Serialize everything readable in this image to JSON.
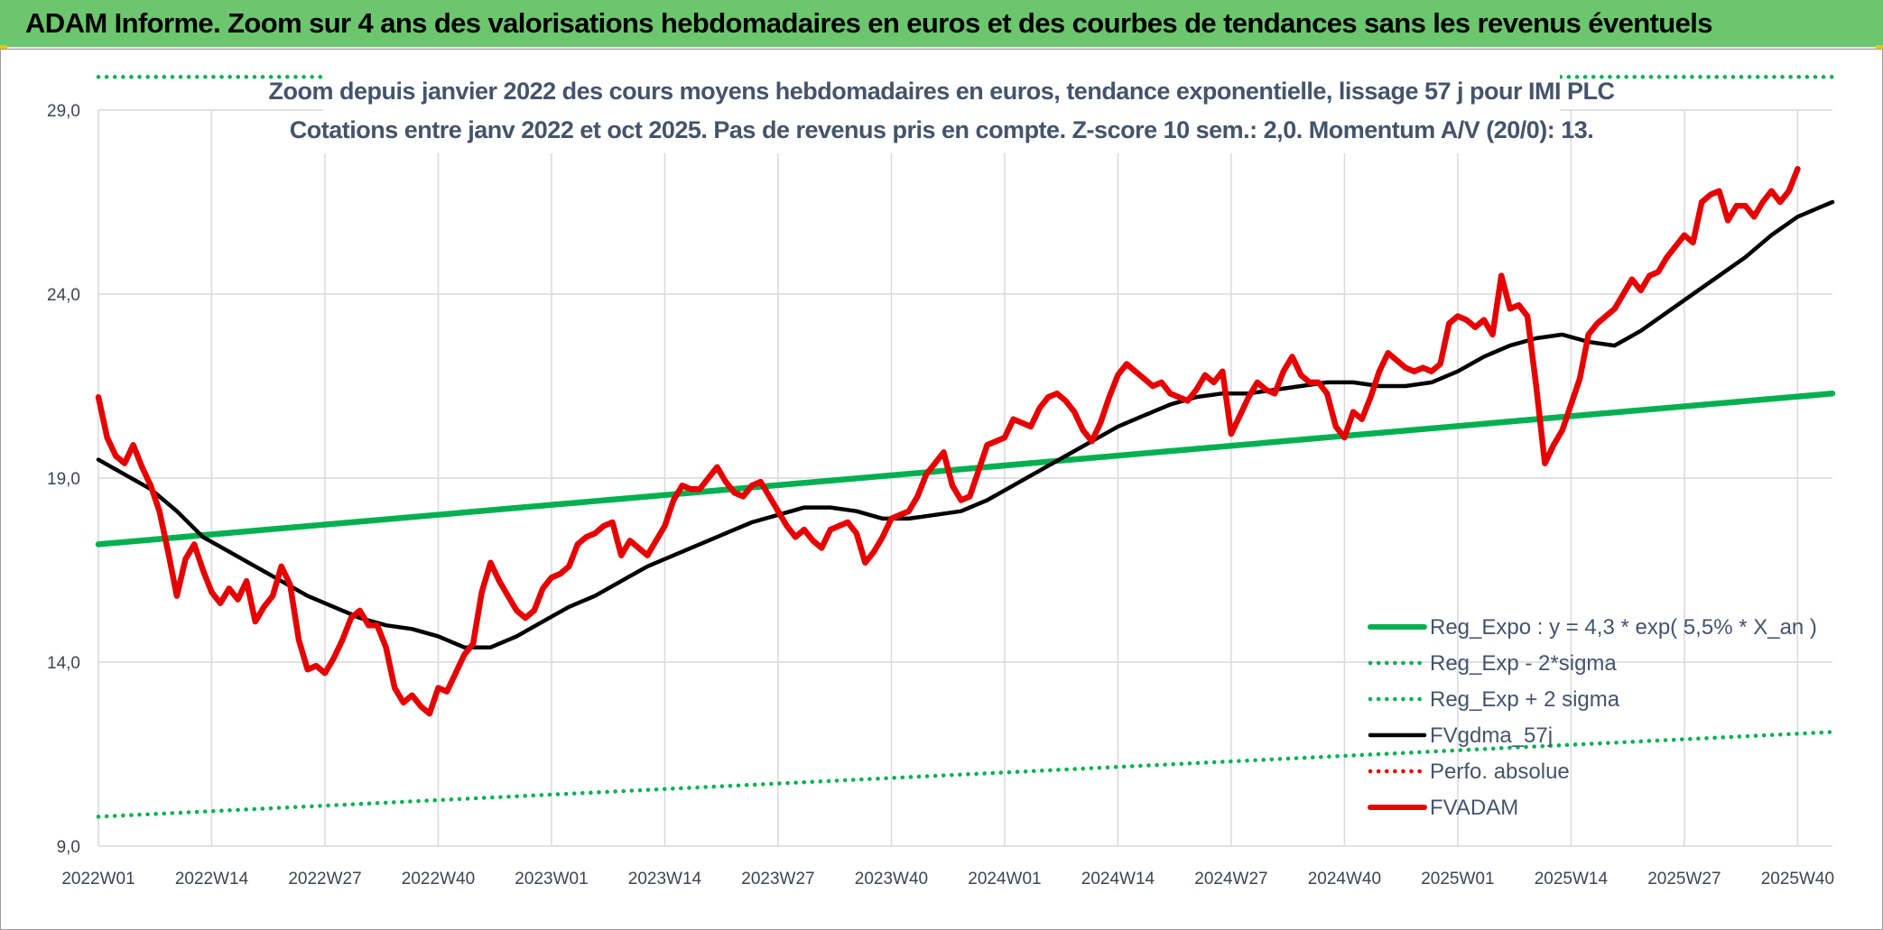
{
  "banner": {
    "title": "ADAM Informe. Zoom sur 4 ans des valorisations hebdomadaires en euros et des courbes de tendances sans les revenus éventuels"
  },
  "colors": {
    "banner_bg": "#6cc66e",
    "reg_expo": "#00b050",
    "fvgdma": "#000000",
    "fvadam": "#e60000",
    "perfo": "#e60000",
    "grid": "#d9d9d9"
  },
  "chart_data": {
    "type": "line",
    "title_lines": [
      "Zoom depuis janvier 2022 des cours moyens hebdomadaires en euros, tendance exponentielle, lissage 57 j pour IMI PLC",
      "Cotations entre janv 2022 et oct 2025. Pas de revenus pris en compte. Z-score 10 sem.: 2,0. Momentum A/V (20/0): 13."
    ],
    "ylim": [
      9,
      29
    ],
    "y_ticks": [
      "9,0",
      "14,0",
      "19,0",
      "24,0",
      "29,0"
    ],
    "y_tick_values": [
      9,
      14,
      19,
      24,
      29
    ],
    "x_ticks": [
      "2022W01",
      "2022W14",
      "2022W27",
      "2022W40",
      "2023W01",
      "2023W14",
      "2023W27",
      "2023W40",
      "2024W01",
      "2024W14",
      "2024W27",
      "2024W40",
      "2025W01",
      "2025W14",
      "2025W27",
      "2025W40"
    ],
    "x_tick_weeks": [
      0,
      13,
      26,
      39,
      52,
      65,
      78,
      91,
      104,
      117,
      130,
      143,
      156,
      169,
      182,
      195
    ],
    "x_range": [
      0,
      199
    ],
    "legend": [
      {
        "key": "reg_expo",
        "label": "Reg_Expo : y = 4,3 * exp( 5,5% *  X_an )",
        "style": "solid",
        "color": "#00b050"
      },
      {
        "key": "reg_minus",
        "label": "Reg_Exp - 2*sigma",
        "style": "dotted",
        "color": "#00b050"
      },
      {
        "key": "reg_plus",
        "label": "Reg_Exp + 2 sigma",
        "style": "dotted",
        "color": "#00b050"
      },
      {
        "key": "fvgdma",
        "label": "FVgdma_57j",
        "style": "solid",
        "color": "#000000"
      },
      {
        "key": "perfo",
        "label": "Perfo. absolue",
        "style": "dotted",
        "color": "#e60000"
      },
      {
        "key": "fvadam",
        "label": "FVADAM",
        "style": "solid",
        "color": "#e60000"
      }
    ],
    "series": [
      {
        "name": "Reg_Expo",
        "points": [
          [
            0,
            17.2
          ],
          [
            199,
            21.3
          ]
        ]
      },
      {
        "name": "Reg_Exp - 2*sigma",
        "points": [
          [
            0,
            9.8
          ],
          [
            199,
            12.1
          ]
        ]
      },
      {
        "name": "Reg_Exp + 2 sigma",
        "points": [
          [
            0,
            29.9
          ],
          [
            199,
            29.9
          ]
        ]
      },
      {
        "name": "FVgdma_57j",
        "points": [
          [
            0,
            19.5
          ],
          [
            3,
            19.1
          ],
          [
            6,
            18.7
          ],
          [
            9,
            18.1
          ],
          [
            12,
            17.4
          ],
          [
            15,
            17.0
          ],
          [
            18,
            16.6
          ],
          [
            21,
            16.2
          ],
          [
            24,
            15.8
          ],
          [
            27,
            15.5
          ],
          [
            30,
            15.2
          ],
          [
            33,
            15.0
          ],
          [
            36,
            14.9
          ],
          [
            39,
            14.7
          ],
          [
            42,
            14.4
          ],
          [
            45,
            14.4
          ],
          [
            48,
            14.7
          ],
          [
            51,
            15.1
          ],
          [
            54,
            15.5
          ],
          [
            57,
            15.8
          ],
          [
            60,
            16.2
          ],
          [
            63,
            16.6
          ],
          [
            66,
            16.9
          ],
          [
            69,
            17.2
          ],
          [
            72,
            17.5
          ],
          [
            75,
            17.8
          ],
          [
            78,
            18.0
          ],
          [
            81,
            18.2
          ],
          [
            84,
            18.2
          ],
          [
            87,
            18.1
          ],
          [
            90,
            17.9
          ],
          [
            93,
            17.9
          ],
          [
            96,
            18.0
          ],
          [
            99,
            18.1
          ],
          [
            102,
            18.4
          ],
          [
            105,
            18.8
          ],
          [
            108,
            19.2
          ],
          [
            111,
            19.6
          ],
          [
            114,
            20.0
          ],
          [
            117,
            20.4
          ],
          [
            120,
            20.7
          ],
          [
            123,
            21.0
          ],
          [
            126,
            21.2
          ],
          [
            129,
            21.3
          ],
          [
            132,
            21.3
          ],
          [
            135,
            21.4
          ],
          [
            138,
            21.5
          ],
          [
            141,
            21.6
          ],
          [
            144,
            21.6
          ],
          [
            147,
            21.5
          ],
          [
            150,
            21.5
          ],
          [
            153,
            21.6
          ],
          [
            156,
            21.9
          ],
          [
            159,
            22.3
          ],
          [
            162,
            22.6
          ],
          [
            165,
            22.8
          ],
          [
            168,
            22.9
          ],
          [
            171,
            22.7
          ],
          [
            174,
            22.6
          ],
          [
            177,
            23.0
          ],
          [
            180,
            23.5
          ],
          [
            183,
            24.0
          ],
          [
            186,
            24.5
          ],
          [
            189,
            25.0
          ],
          [
            192,
            25.6
          ],
          [
            195,
            26.1
          ],
          [
            198,
            26.4
          ],
          [
            199,
            26.5
          ]
        ]
      },
      {
        "name": "FVADAM",
        "points": [
          [
            0,
            21.2
          ],
          [
            1,
            20.1
          ],
          [
            2,
            19.6
          ],
          [
            3,
            19.4
          ],
          [
            4,
            19.9
          ],
          [
            5,
            19.3
          ],
          [
            6,
            18.8
          ],
          [
            7,
            18.1
          ],
          [
            8,
            17.0
          ],
          [
            9,
            15.8
          ],
          [
            10,
            16.8
          ],
          [
            11,
            17.2
          ],
          [
            12,
            16.5
          ],
          [
            13,
            15.9
          ],
          [
            14,
            15.6
          ],
          [
            15,
            16.0
          ],
          [
            16,
            15.7
          ],
          [
            17,
            16.2
          ],
          [
            18,
            15.1
          ],
          [
            19,
            15.5
          ],
          [
            20,
            15.8
          ],
          [
            21,
            16.6
          ],
          [
            22,
            16.1
          ],
          [
            23,
            14.6
          ],
          [
            24,
            13.8
          ],
          [
            25,
            13.9
          ],
          [
            26,
            13.7
          ],
          [
            27,
            14.1
          ],
          [
            28,
            14.6
          ],
          [
            29,
            15.2
          ],
          [
            30,
            15.4
          ],
          [
            31,
            15.0
          ],
          [
            32,
            15.0
          ],
          [
            33,
            14.4
          ],
          [
            34,
            13.3
          ],
          [
            35,
            12.9
          ],
          [
            36,
            13.1
          ],
          [
            37,
            12.8
          ],
          [
            38,
            12.6
          ],
          [
            39,
            13.3
          ],
          [
            40,
            13.2
          ],
          [
            41,
            13.7
          ],
          [
            42,
            14.2
          ],
          [
            43,
            14.5
          ],
          [
            44,
            15.9
          ],
          [
            45,
            16.7
          ],
          [
            46,
            16.2
          ],
          [
            47,
            15.8
          ],
          [
            48,
            15.4
          ],
          [
            49,
            15.2
          ],
          [
            50,
            15.4
          ],
          [
            51,
            16.0
          ],
          [
            52,
            16.3
          ],
          [
            53,
            16.4
          ],
          [
            54,
            16.6
          ],
          [
            55,
            17.2
          ],
          [
            56,
            17.4
          ],
          [
            57,
            17.5
          ],
          [
            58,
            17.7
          ],
          [
            59,
            17.8
          ],
          [
            60,
            16.9
          ],
          [
            61,
            17.3
          ],
          [
            62,
            17.1
          ],
          [
            63,
            16.9
          ],
          [
            64,
            17.3
          ],
          [
            65,
            17.7
          ],
          [
            66,
            18.4
          ],
          [
            67,
            18.8
          ],
          [
            68,
            18.7
          ],
          [
            69,
            18.7
          ],
          [
            70,
            19.0
          ],
          [
            71,
            19.3
          ],
          [
            72,
            18.9
          ],
          [
            73,
            18.6
          ],
          [
            74,
            18.5
          ],
          [
            75,
            18.8
          ],
          [
            76,
            18.9
          ],
          [
            77,
            18.5
          ],
          [
            78,
            18.1
          ],
          [
            79,
            17.7
          ],
          [
            80,
            17.4
          ],
          [
            81,
            17.6
          ],
          [
            82,
            17.3
          ],
          [
            83,
            17.1
          ],
          [
            84,
            17.6
          ],
          [
            85,
            17.7
          ],
          [
            86,
            17.8
          ],
          [
            87,
            17.5
          ],
          [
            88,
            16.7
          ],
          [
            89,
            17.0
          ],
          [
            90,
            17.4
          ],
          [
            91,
            17.9
          ],
          [
            92,
            18.0
          ],
          [
            93,
            18.1
          ],
          [
            94,
            18.5
          ],
          [
            95,
            19.1
          ],
          [
            96,
            19.4
          ],
          [
            97,
            19.7
          ],
          [
            98,
            18.8
          ],
          [
            99,
            18.4
          ],
          [
            100,
            18.5
          ],
          [
            101,
            19.2
          ],
          [
            102,
            19.9
          ],
          [
            103,
            20.0
          ],
          [
            104,
            20.1
          ],
          [
            105,
            20.6
          ],
          [
            106,
            20.5
          ],
          [
            107,
            20.4
          ],
          [
            108,
            20.9
          ],
          [
            109,
            21.2
          ],
          [
            110,
            21.3
          ],
          [
            111,
            21.1
          ],
          [
            112,
            20.8
          ],
          [
            113,
            20.3
          ],
          [
            114,
            20.0
          ],
          [
            115,
            20.5
          ],
          [
            116,
            21.2
          ],
          [
            117,
            21.8
          ],
          [
            118,
            22.1
          ],
          [
            119,
            21.9
          ],
          [
            120,
            21.7
          ],
          [
            121,
            21.5
          ],
          [
            122,
            21.6
          ],
          [
            123,
            21.3
          ],
          [
            124,
            21.2
          ],
          [
            125,
            21.1
          ],
          [
            126,
            21.4
          ],
          [
            127,
            21.8
          ],
          [
            128,
            21.6
          ],
          [
            129,
            21.9
          ],
          [
            130,
            20.2
          ],
          [
            131,
            20.7
          ],
          [
            132,
            21.2
          ],
          [
            133,
            21.6
          ],
          [
            134,
            21.4
          ],
          [
            135,
            21.3
          ],
          [
            136,
            21.9
          ],
          [
            137,
            22.3
          ],
          [
            138,
            21.8
          ],
          [
            139,
            21.6
          ],
          [
            140,
            21.6
          ],
          [
            141,
            21.3
          ],
          [
            142,
            20.4
          ],
          [
            143,
            20.1
          ],
          [
            144,
            20.8
          ],
          [
            145,
            20.6
          ],
          [
            146,
            21.2
          ],
          [
            147,
            21.9
          ],
          [
            148,
            22.4
          ],
          [
            149,
            22.2
          ],
          [
            150,
            22.0
          ],
          [
            151,
            21.9
          ],
          [
            152,
            22.0
          ],
          [
            153,
            21.9
          ],
          [
            154,
            22.1
          ],
          [
            155,
            23.2
          ],
          [
            156,
            23.4
          ],
          [
            157,
            23.3
          ],
          [
            158,
            23.1
          ],
          [
            159,
            23.3
          ],
          [
            160,
            22.9
          ],
          [
            161,
            24.5
          ],
          [
            162,
            23.6
          ],
          [
            163,
            23.7
          ],
          [
            164,
            23.4
          ],
          [
            165,
            21.5
          ],
          [
            166,
            19.4
          ],
          [
            167,
            19.9
          ],
          [
            168,
            20.3
          ],
          [
            169,
            21.0
          ],
          [
            170,
            21.7
          ],
          [
            171,
            22.9
          ],
          [
            172,
            23.2
          ],
          [
            173,
            23.4
          ],
          [
            174,
            23.6
          ],
          [
            175,
            24.0
          ],
          [
            176,
            24.4
          ],
          [
            177,
            24.1
          ],
          [
            178,
            24.5
          ],
          [
            179,
            24.6
          ],
          [
            180,
            25.0
          ],
          [
            181,
            25.3
          ],
          [
            182,
            25.6
          ],
          [
            183,
            25.4
          ],
          [
            184,
            26.5
          ],
          [
            185,
            26.7
          ],
          [
            186,
            26.8
          ],
          [
            187,
            26.0
          ],
          [
            188,
            26.4
          ],
          [
            189,
            26.4
          ],
          [
            190,
            26.1
          ],
          [
            191,
            26.5
          ],
          [
            192,
            26.8
          ],
          [
            193,
            26.5
          ],
          [
            194,
            26.8
          ],
          [
            195,
            27.4
          ]
        ]
      }
    ]
  }
}
